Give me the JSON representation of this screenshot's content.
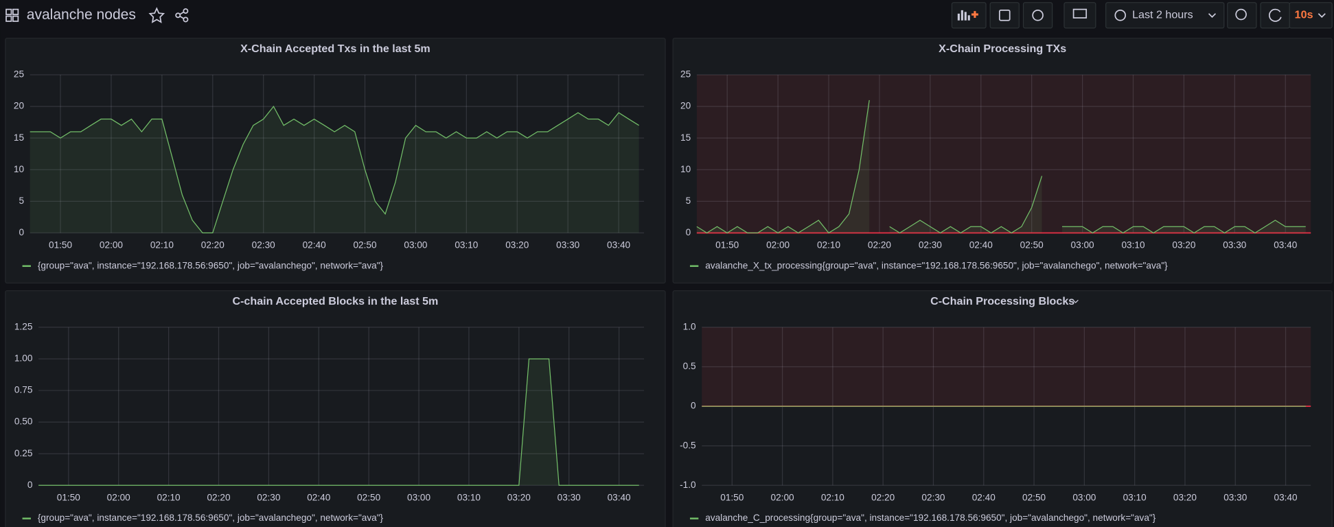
{
  "header": {
    "title": "avalanche nodes",
    "time_range": "Last 2 hours",
    "refresh": "10s"
  },
  "chart_data": [
    {
      "type": "line",
      "title": "X-Chain Accepted Txs in the last 5m",
      "x": [
        "01:44",
        "01:46",
        "01:48",
        "01:50",
        "01:52",
        "01:54",
        "01:56",
        "01:58",
        "02:00",
        "02:02",
        "02:04",
        "02:06",
        "02:08",
        "02:10",
        "02:12",
        "02:14",
        "02:16",
        "02:18",
        "02:20",
        "02:22",
        "02:24",
        "02:26",
        "02:28",
        "02:30",
        "02:32",
        "02:34",
        "02:36",
        "02:38",
        "02:40",
        "02:42",
        "02:44",
        "02:46",
        "02:48",
        "02:50",
        "02:52",
        "02:54",
        "02:56",
        "02:58",
        "03:00",
        "03:02",
        "03:04",
        "03:06",
        "03:08",
        "03:10",
        "03:12",
        "03:14",
        "03:16",
        "03:18",
        "03:20",
        "03:22",
        "03:24",
        "03:26",
        "03:28",
        "03:30",
        "03:32",
        "03:34",
        "03:36",
        "03:38",
        "03:40",
        "03:42",
        "03:44"
      ],
      "series": [
        {
          "name": "{group=\"ava\", instance=\"192.168.178.56:9650\", job=\"avalanchego\", network=\"ava\"}",
          "color": "#73bf69",
          "values": [
            16,
            16,
            16,
            15,
            16,
            16,
            17,
            18,
            18,
            17,
            18,
            16,
            18,
            18,
            12,
            6,
            2,
            0,
            0,
            5,
            10,
            14,
            17,
            18,
            20,
            17,
            18,
            17,
            18,
            17,
            16,
            17,
            16,
            10,
            5,
            3,
            8,
            15,
            17,
            16,
            16,
            15,
            16,
            15,
            15,
            16,
            15,
            16,
            16,
            15,
            16,
            16,
            17,
            18,
            19,
            18,
            18,
            17,
            19,
            18,
            17
          ]
        }
      ],
      "xlim": [
        "01:44",
        "03:45"
      ],
      "xticks": [
        "01:50",
        "02:00",
        "02:10",
        "02:20",
        "02:30",
        "02:40",
        "02:50",
        "03:00",
        "03:10",
        "03:20",
        "03:30",
        "03:40"
      ],
      "ylim": [
        0,
        25
      ],
      "yticks": [
        0,
        5,
        10,
        15,
        20,
        25
      ],
      "grid": true,
      "fill": true
    },
    {
      "type": "line",
      "title": "X-Chain Processing TXs",
      "x": [
        "01:44",
        "01:46",
        "01:48",
        "01:50",
        "01:52",
        "01:54",
        "01:56",
        "01:58",
        "02:00",
        "02:02",
        "02:04",
        "02:06",
        "02:08",
        "02:10",
        "02:12",
        "02:14",
        "02:16",
        "02:18",
        "02:20",
        "02:22",
        "02:24",
        "02:26",
        "02:28",
        "02:30",
        "02:32",
        "02:34",
        "02:36",
        "02:38",
        "02:40",
        "02:42",
        "02:44",
        "02:46",
        "02:48",
        "02:50",
        "02:52",
        "02:54",
        "02:56",
        "02:58",
        "03:00",
        "03:02",
        "03:04",
        "03:06",
        "03:08",
        "03:10",
        "03:12",
        "03:14",
        "03:16",
        "03:18",
        "03:20",
        "03:22",
        "03:24",
        "03:26",
        "03:28",
        "03:30",
        "03:32",
        "03:34",
        "03:36",
        "03:38",
        "03:40",
        "03:42",
        "03:44"
      ],
      "series": [
        {
          "name": "avalanche_X_tx_processing{group=\"ava\", instance=\"192.168.178.56:9650\", job=\"avalanchego\", network=\"ava\"}",
          "color": "#73bf69",
          "values": [
            1,
            0,
            1,
            0,
            1,
            0,
            0,
            1,
            0,
            1,
            0,
            1,
            2,
            0,
            1,
            3,
            10,
            21,
            null,
            1,
            0,
            1,
            2,
            1,
            0,
            1,
            0,
            1,
            1,
            0,
            1,
            0,
            1,
            4,
            9,
            null,
            1,
            1,
            1,
            0,
            1,
            1,
            0,
            1,
            1,
            0,
            1,
            1,
            1,
            0,
            1,
            1,
            0,
            1,
            1,
            0,
            1,
            2,
            1,
            1,
            1
          ]
        }
      ],
      "xlim": [
        "01:44",
        "03:45"
      ],
      "xticks": [
        "01:50",
        "02:00",
        "02:10",
        "02:20",
        "02:30",
        "02:40",
        "02:50",
        "03:00",
        "03:10",
        "03:20",
        "03:30",
        "03:40"
      ],
      "ylim": [
        0,
        25
      ],
      "yticks": [
        0,
        5,
        10,
        15,
        20,
        25
      ],
      "grid": true,
      "fill": true,
      "threshold": {
        "value": 0,
        "color": "#e02f44"
      }
    },
    {
      "type": "line",
      "title": "C-chain Accepted Blocks in the last 5m",
      "x": [
        "01:44",
        "01:46",
        "01:48",
        "01:50",
        "01:52",
        "01:54",
        "01:56",
        "01:58",
        "02:00",
        "02:02",
        "02:04",
        "02:06",
        "02:08",
        "02:10",
        "02:12",
        "02:14",
        "02:16",
        "02:18",
        "02:20",
        "02:22",
        "02:24",
        "02:26",
        "02:28",
        "02:30",
        "02:32",
        "02:34",
        "02:36",
        "02:38",
        "02:40",
        "02:42",
        "02:44",
        "02:46",
        "02:48",
        "02:50",
        "02:52",
        "02:54",
        "02:56",
        "02:58",
        "03:00",
        "03:02",
        "03:04",
        "03:06",
        "03:08",
        "03:10",
        "03:12",
        "03:14",
        "03:16",
        "03:18",
        "03:20",
        "03:22",
        "03:24",
        "03:26",
        "03:28",
        "03:30",
        "03:32",
        "03:34",
        "03:36",
        "03:38",
        "03:40",
        "03:42",
        "03:44"
      ],
      "series": [
        {
          "name": "{group=\"ava\", instance=\"192.168.178.56:9650\", job=\"avalanchego\", network=\"ava\"}",
          "color": "#73bf69",
          "values": [
            0,
            0,
            0,
            0,
            0,
            0,
            0,
            0,
            0,
            0,
            0,
            0,
            0,
            0,
            0,
            0,
            0,
            0,
            0,
            0,
            0,
            0,
            0,
            0,
            0,
            0,
            0,
            0,
            0,
            0,
            0,
            0,
            0,
            0,
            0,
            0,
            0,
            0,
            0,
            0,
            0,
            0,
            0,
            0,
            0,
            0,
            0,
            0,
            0,
            1,
            1,
            1,
            0,
            0,
            0,
            0,
            0,
            0,
            0,
            0,
            0
          ]
        }
      ],
      "xlim": [
        "01:44",
        "03:45"
      ],
      "xticks": [
        "01:50",
        "02:00",
        "02:10",
        "02:20",
        "02:30",
        "02:40",
        "02:50",
        "03:00",
        "03:10",
        "03:20",
        "03:30",
        "03:40"
      ],
      "ylim": [
        0,
        1.25
      ],
      "yticks": [
        0,
        0.25,
        {
          "value": 0.5,
          "label": "0.50"
        },
        0.75,
        {
          "value": 1,
          "label": "1.00"
        },
        1.25
      ],
      "grid": true,
      "fill": true
    },
    {
      "type": "line",
      "title": "C-Chain Processing Blocks",
      "x": [
        "01:44",
        "01:46",
        "01:48",
        "01:50",
        "01:52",
        "01:54",
        "01:56",
        "01:58",
        "02:00",
        "02:02",
        "02:04",
        "02:06",
        "02:08",
        "02:10",
        "02:12",
        "02:14",
        "02:16",
        "02:18",
        "02:20",
        "02:22",
        "02:24",
        "02:26",
        "02:28",
        "02:30",
        "02:32",
        "02:34",
        "02:36",
        "02:38",
        "02:40",
        "02:42",
        "02:44",
        "02:46",
        "02:48",
        "02:50",
        "02:52",
        "02:54",
        "02:56",
        "02:58",
        "03:00",
        "03:02",
        "03:04",
        "03:06",
        "03:08",
        "03:10",
        "03:12",
        "03:14",
        "03:16",
        "03:18",
        "03:20",
        "03:22",
        "03:24",
        "03:26",
        "03:28",
        "03:30",
        "03:32",
        "03:34",
        "03:36",
        "03:38",
        "03:40",
        "03:42",
        "03:44"
      ],
      "series": [
        {
          "name": "avalanche_C_processing{group=\"ava\", instance=\"192.168.178.56:9650\", job=\"avalanchego\", network=\"ava\"}",
          "color": "#73bf69",
          "values": [
            0,
            0,
            0,
            0,
            0,
            0,
            0,
            0,
            0,
            0,
            0,
            0,
            0,
            0,
            0,
            0,
            0,
            0,
            0,
            0,
            0,
            0,
            0,
            0,
            0,
            0,
            0,
            0,
            0,
            0,
            0,
            0,
            0,
            0,
            0,
            0,
            0,
            0,
            0,
            0,
            0,
            0,
            0,
            0,
            0,
            0,
            0,
            0,
            0,
            0,
            0,
            0,
            0,
            0,
            0,
            0,
            0,
            0,
            0,
            0,
            0
          ]
        }
      ],
      "xlim": [
        "01:44",
        "03:45"
      ],
      "xticks": [
        "01:50",
        "02:00",
        "02:10",
        "02:20",
        "02:30",
        "02:40",
        "02:50",
        "03:00",
        "03:10",
        "03:20",
        "03:30",
        "03:40"
      ],
      "ylim": [
        -1,
        1
      ],
      "yticks": [
        {
          "value": -1,
          "label": "-1.0"
        },
        -0.5,
        0,
        0.5,
        {
          "value": 1,
          "label": "1.0"
        }
      ],
      "grid": true,
      "fill": true,
      "threshold": {
        "value": 0,
        "color": "#e02f44"
      }
    }
  ]
}
